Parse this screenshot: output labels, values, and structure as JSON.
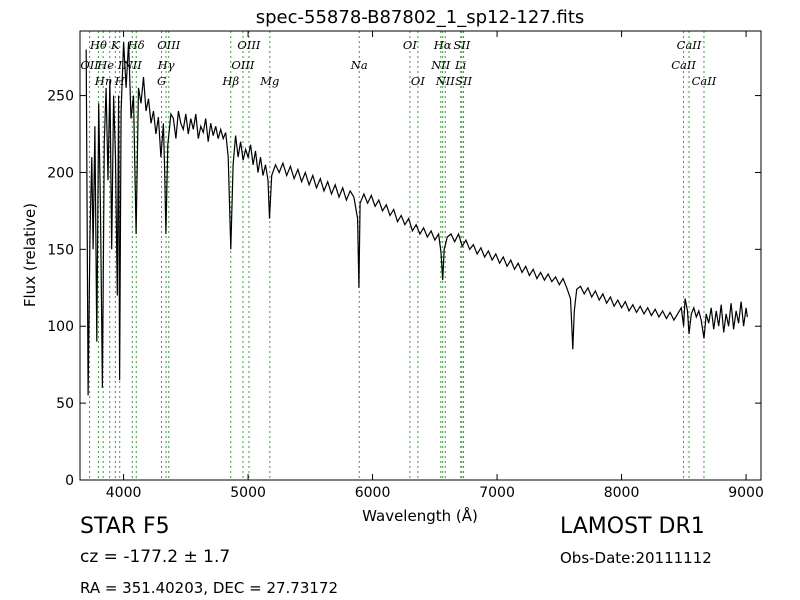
{
  "chart_data": {
    "type": "line",
    "title": "spec-55878-B87802_1_sp12-127.fits",
    "xlabel": "Wavelength (Å)",
    "ylabel": "Flux (relative)",
    "xlim": [
      3650,
      9120
    ],
    "ylim": [
      0,
      292
    ],
    "xticks": [
      4000,
      5000,
      6000,
      7000,
      8000,
      9000
    ],
    "yticks": [
      0,
      50,
      100,
      150,
      200,
      250
    ],
    "grid": false,
    "series": [
      {
        "color": "#000000",
        "points": [
          [
            3700,
            280
          ],
          [
            3715,
            55
          ],
          [
            3730,
            160
          ],
          [
            3745,
            210
          ],
          [
            3755,
            150
          ],
          [
            3770,
            230
          ],
          [
            3785,
            90
          ],
          [
            3800,
            245
          ],
          [
            3815,
            175
          ],
          [
            3830,
            60
          ],
          [
            3845,
            220
          ],
          [
            3860,
            255
          ],
          [
            3875,
            195
          ],
          [
            3890,
            260
          ],
          [
            3905,
            150
          ],
          [
            3920,
            250
          ],
          [
            3935,
            210
          ],
          [
            3950,
            120
          ],
          [
            3960,
            250
          ],
          [
            3968,
            65
          ],
          [
            3980,
            240
          ],
          [
            4000,
            285
          ],
          [
            4020,
            255
          ],
          [
            4040,
            285
          ],
          [
            4060,
            235
          ],
          [
            4080,
            250
          ],
          [
            4101,
            160
          ],
          [
            4120,
            255
          ],
          [
            4140,
            245
          ],
          [
            4160,
            262
          ],
          [
            4180,
            240
          ],
          [
            4200,
            248
          ],
          [
            4220,
            232
          ],
          [
            4240,
            240
          ],
          [
            4260,
            225
          ],
          [
            4280,
            236
          ],
          [
            4300,
            210
          ],
          [
            4320,
            232
          ],
          [
            4330,
            200
          ],
          [
            4340,
            160
          ],
          [
            4355,
            218
          ],
          [
            4380,
            238
          ],
          [
            4400,
            235
          ],
          [
            4420,
            222
          ],
          [
            4440,
            240
          ],
          [
            4460,
            232
          ],
          [
            4480,
            228
          ],
          [
            4500,
            238
          ],
          [
            4520,
            225
          ],
          [
            4540,
            235
          ],
          [
            4560,
            228
          ],
          [
            4580,
            238
          ],
          [
            4600,
            222
          ],
          [
            4620,
            230
          ],
          [
            4640,
            226
          ],
          [
            4660,
            235
          ],
          [
            4680,
            220
          ],
          [
            4700,
            232
          ],
          [
            4720,
            224
          ],
          [
            4740,
            230
          ],
          [
            4760,
            222
          ],
          [
            4780,
            228
          ],
          [
            4800,
            222
          ],
          [
            4820,
            226
          ],
          [
            4840,
            210
          ],
          [
            4861,
            150
          ],
          [
            4880,
            205
          ],
          [
            4900,
            224
          ],
          [
            4920,
            210
          ],
          [
            4940,
            220
          ],
          [
            4960,
            208
          ],
          [
            4980,
            215
          ],
          [
            5000,
            210
          ],
          [
            5020,
            218
          ],
          [
            5040,
            205
          ],
          [
            5060,
            214
          ],
          [
            5080,
            200
          ],
          [
            5100,
            210
          ],
          [
            5120,
            198
          ],
          [
            5140,
            205
          ],
          [
            5160,
            195
          ],
          [
            5172,
            170
          ],
          [
            5190,
            198
          ],
          [
            5220,
            205
          ],
          [
            5250,
            200
          ],
          [
            5280,
            206
          ],
          [
            5310,
            198
          ],
          [
            5340,
            204
          ],
          [
            5370,
            196
          ],
          [
            5400,
            202
          ],
          [
            5430,
            194
          ],
          [
            5460,
            200
          ],
          [
            5490,
            192
          ],
          [
            5520,
            198
          ],
          [
            5550,
            190
          ],
          [
            5580,
            196
          ],
          [
            5610,
            188
          ],
          [
            5640,
            194
          ],
          [
            5670,
            186
          ],
          [
            5700,
            192
          ],
          [
            5730,
            184
          ],
          [
            5760,
            190
          ],
          [
            5790,
            182
          ],
          [
            5820,
            188
          ],
          [
            5850,
            184
          ],
          [
            5880,
            170
          ],
          [
            5890,
            125
          ],
          [
            5900,
            180
          ],
          [
            5930,
            186
          ],
          [
            5960,
            180
          ],
          [
            5990,
            185
          ],
          [
            6020,
            178
          ],
          [
            6050,
            182
          ],
          [
            6080,
            175
          ],
          [
            6110,
            179
          ],
          [
            6140,
            172
          ],
          [
            6170,
            176
          ],
          [
            6200,
            168
          ],
          [
            6230,
            172
          ],
          [
            6260,
            166
          ],
          [
            6290,
            170
          ],
          [
            6320,
            162
          ],
          [
            6350,
            166
          ],
          [
            6380,
            160
          ],
          [
            6410,
            164
          ],
          [
            6440,
            158
          ],
          [
            6470,
            162
          ],
          [
            6500,
            156
          ],
          [
            6530,
            160
          ],
          [
            6550,
            148
          ],
          [
            6563,
            130
          ],
          [
            6575,
            150
          ],
          [
            6600,
            158
          ],
          [
            6630,
            160
          ],
          [
            6660,
            155
          ],
          [
            6690,
            160
          ],
          [
            6720,
            152
          ],
          [
            6750,
            156
          ],
          [
            6780,
            150
          ],
          [
            6810,
            153
          ],
          [
            6840,
            147
          ],
          [
            6870,
            151
          ],
          [
            6900,
            145
          ],
          [
            6930,
            149
          ],
          [
            6960,
            143
          ],
          [
            6990,
            147
          ],
          [
            7020,
            141
          ],
          [
            7050,
            145
          ],
          [
            7080,
            139
          ],
          [
            7110,
            143
          ],
          [
            7140,
            137
          ],
          [
            7170,
            141
          ],
          [
            7200,
            135
          ],
          [
            7230,
            139
          ],
          [
            7260,
            133
          ],
          [
            7290,
            137
          ],
          [
            7320,
            131
          ],
          [
            7350,
            135
          ],
          [
            7380,
            130
          ],
          [
            7410,
            134
          ],
          [
            7440,
            129
          ],
          [
            7470,
            132
          ],
          [
            7500,
            127
          ],
          [
            7530,
            131
          ],
          [
            7560,
            125
          ],
          [
            7590,
            118
          ],
          [
            7600,
            100
          ],
          [
            7608,
            85
          ],
          [
            7620,
            110
          ],
          [
            7640,
            124
          ],
          [
            7670,
            126
          ],
          [
            7700,
            121
          ],
          [
            7730,
            125
          ],
          [
            7760,
            119
          ],
          [
            7790,
            123
          ],
          [
            7820,
            117
          ],
          [
            7850,
            121
          ],
          [
            7880,
            115
          ],
          [
            7910,
            119
          ],
          [
            7940,
            113
          ],
          [
            7970,
            117
          ],
          [
            8000,
            112
          ],
          [
            8030,
            116
          ],
          [
            8060,
            110
          ],
          [
            8090,
            114
          ],
          [
            8120,
            109
          ],
          [
            8150,
            113
          ],
          [
            8180,
            108
          ],
          [
            8210,
            112
          ],
          [
            8240,
            107
          ],
          [
            8270,
            111
          ],
          [
            8300,
            106
          ],
          [
            8330,
            110
          ],
          [
            8360,
            105
          ],
          [
            8390,
            109
          ],
          [
            8420,
            104
          ],
          [
            8450,
            108
          ],
          [
            8480,
            112
          ],
          [
            8498,
            100
          ],
          [
            8510,
            118
          ],
          [
            8530,
            110
          ],
          [
            8542,
            95
          ],
          [
            8560,
            108
          ],
          [
            8580,
            112
          ],
          [
            8600,
            106
          ],
          [
            8620,
            110
          ],
          [
            8640,
            104
          ],
          [
            8662,
            92
          ],
          [
            8680,
            108
          ],
          [
            8700,
            102
          ],
          [
            8720,
            112
          ],
          [
            8740,
            98
          ],
          [
            8760,
            110
          ],
          [
            8780,
            100
          ],
          [
            8800,
            114
          ],
          [
            8820,
            96
          ],
          [
            8840,
            108
          ],
          [
            8860,
            100
          ],
          [
            8880,
            115
          ],
          [
            8900,
            98
          ],
          [
            8920,
            110
          ],
          [
            8940,
            102
          ],
          [
            8960,
            116
          ],
          [
            8980,
            100
          ],
          [
            9000,
            112
          ],
          [
            9010,
            106
          ]
        ]
      }
    ],
    "lines": [
      {
        "label": "OII",
        "x": 3727,
        "row": 1
      },
      {
        "label": "Hθ",
        "x": 3798,
        "row": 0
      },
      {
        "label": "Hη",
        "x": 3836,
        "row": 2
      },
      {
        "label": "He I",
        "x": 3889,
        "row": 1
      },
      {
        "label": "K",
        "x": 3934,
        "row": 0
      },
      {
        "label": "H",
        "x": 3969,
        "row": 2
      },
      {
        "label": "Hδ",
        "x": 4102,
        "row": 0
      },
      {
        "label": "NII",
        "x": 4070,
        "row": 1
      },
      {
        "label": "OIII",
        "x": 4363,
        "row": 0
      },
      {
        "label": "Hγ",
        "x": 4341,
        "row": 1
      },
      {
        "label": "G",
        "x": 4305,
        "row": 2
      },
      {
        "label": "Hβ",
        "x": 4861,
        "row": 2
      },
      {
        "label": "OIII",
        "x": 4959,
        "row": 1
      },
      {
        "label": "OIII",
        "x": 5007,
        "row": 0
      },
      {
        "label": "Mg",
        "x": 5175,
        "row": 2
      },
      {
        "label": "Na",
        "x": 5893,
        "row": 1
      },
      {
        "label": "OI",
        "x": 6300,
        "row": 0
      },
      {
        "label": "OI",
        "x": 6364,
        "row": 2
      },
      {
        "label": "NII",
        "x": 6548,
        "row": 1
      },
      {
        "label": "Hα",
        "x": 6563,
        "row": 0
      },
      {
        "label": "NII",
        "x": 6584,
        "row": 2
      },
      {
        "label": "SII",
        "x": 6717,
        "row": 0
      },
      {
        "label": "Li",
        "x": 6708,
        "row": 1
      },
      {
        "label": "SII",
        "x": 6731,
        "row": 2
      },
      {
        "label": "CaII",
        "x": 8542,
        "row": 0
      },
      {
        "label": "CaII",
        "x": 8498,
        "row": 1
      },
      {
        "label": "CaII",
        "x": 8662,
        "row": 2
      }
    ]
  },
  "info": {
    "object_class": "STAR   F5",
    "cz": "cz = -177.2 ± 1.7",
    "radec": "RA = 351.40203, DEC = 27.73172",
    "survey": "LAMOST DR1",
    "obs_date": "Obs-Date:20111112"
  }
}
